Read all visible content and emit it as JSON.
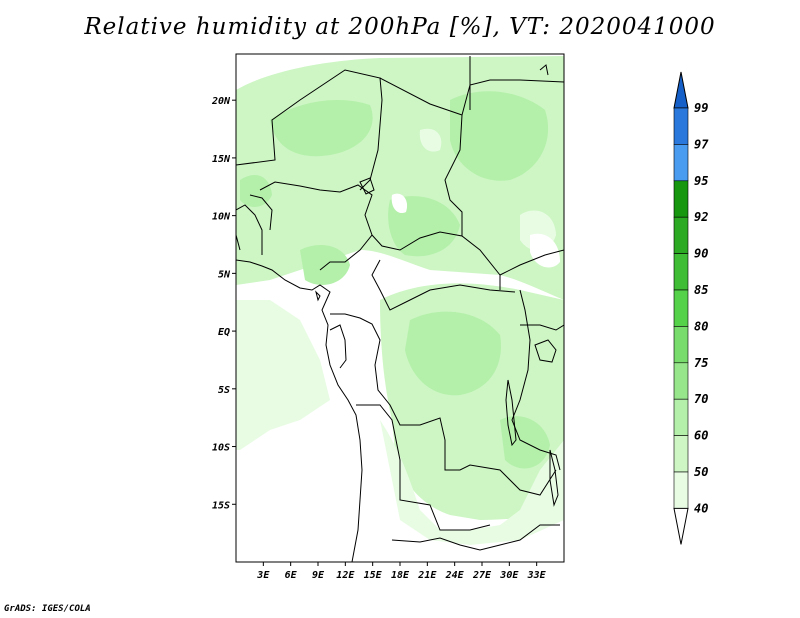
{
  "title": "Relative humidity at 200hPa [%], VT: 2020041000",
  "credit": "GrADS: IGES/COLA",
  "map": {
    "lon_range": [
      0,
      36
    ],
    "lat_range": [
      -20,
      24
    ],
    "lon_ticks": [
      "3E",
      "6E",
      "9E",
      "12E",
      "15E",
      "18E",
      "21E",
      "24E",
      "27E",
      "30E",
      "33E"
    ],
    "lat_ticks": [
      "20N",
      "15N",
      "10N",
      "5N",
      "EQ",
      "5S",
      "10S",
      "15S"
    ]
  },
  "colorbar": {
    "levels": [
      "99",
      "97",
      "95",
      "92",
      "90",
      "85",
      "80",
      "75",
      "70",
      "60",
      "50",
      "40"
    ],
    "colors": [
      "#1560c8",
      "#2a78dc",
      "#4a9cf0",
      "#17960f",
      "#2daa23",
      "#3fbe35",
      "#55d24a",
      "#78dc6c",
      "#98e68c",
      "#b4f0aa",
      "#cdf6c4",
      "#e8fce4"
    ]
  },
  "colors": {
    "moist_fill": "#b4f0aa",
    "light_fill": "#e8fce4",
    "boundary": "#000000"
  }
}
